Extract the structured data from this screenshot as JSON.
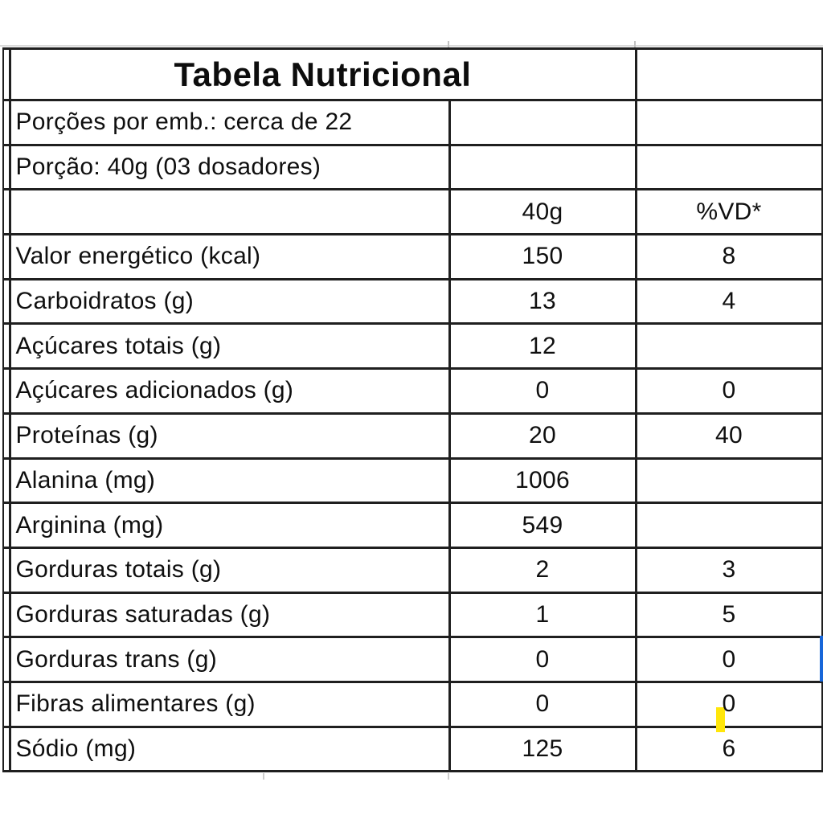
{
  "table": {
    "title": "Tabela Nutricional",
    "info_rows": [
      {
        "label": "Porções por emb.: cerca de 22"
      },
      {
        "label": "Porção: 40g (03 dosadores)"
      }
    ],
    "header": {
      "label": "",
      "amount": "40g",
      "vd": "%VD*"
    },
    "rows": [
      {
        "label": "Valor energético (kcal)",
        "amount": "150",
        "vd": "8"
      },
      {
        "label": "Carboidratos (g)",
        "amount": "13",
        "vd": "4"
      },
      {
        "label": "Açúcares totais (g)",
        "amount": "12",
        "vd": ""
      },
      {
        "label": "Açúcares adicionados (g)",
        "amount": "0",
        "vd": "0"
      },
      {
        "label": "Proteínas (g)",
        "amount": "20",
        "vd": "40"
      },
      {
        "label": "Alanina (mg)",
        "amount": "1006",
        "vd": ""
      },
      {
        "label": "Arginina (mg)",
        "amount": "549",
        "vd": ""
      },
      {
        "label": "Gorduras totais (g)",
        "amount": "2",
        "vd": "3"
      },
      {
        "label": "Gorduras saturadas (g)",
        "amount": "1",
        "vd": "5"
      },
      {
        "label": "Gorduras trans (g)",
        "amount": "0",
        "vd": "0"
      },
      {
        "label": "Fibras alimentares (g)",
        "amount": "0",
        "vd": "0"
      },
      {
        "label": "Sódio (mg)",
        "amount": "125",
        "vd": "6"
      }
    ]
  },
  "artifacts": {
    "caret_color": "#ffe60a",
    "selection_color": "#1766d9",
    "border_color": "#1f1f1f"
  }
}
